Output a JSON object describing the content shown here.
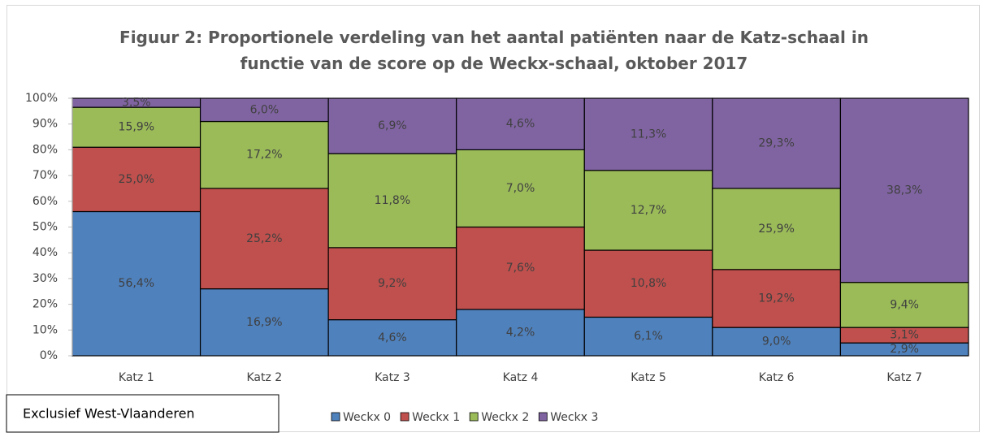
{
  "chart_data": {
    "type": "stacked_bar",
    "title": "Figuur 2: Proportionele verdeling van het aantal patiënten naar de Katz-schaal in functie van de score op de Weckx-schaal, oktober 2017",
    "note": "Exclusief West-Vlaanderen",
    "categories": [
      "Katz 1",
      "Katz 2",
      "Katz 3",
      "Katz 4",
      "Katz 5",
      "Katz 6",
      "Katz 7"
    ],
    "series": [
      {
        "name": "Weckx 0",
        "color": "#4f81bd",
        "values": [
          56,
          26,
          14,
          18,
          15,
          11,
          5
        ],
        "segment_labels": [
          "56,4%",
          "16,9%",
          "4,6%",
          "4,2%",
          "6,1%",
          "9,0%",
          "2,9%"
        ]
      },
      {
        "name": "Weckx 1",
        "color": "#c0504d",
        "values": [
          25,
          39,
          28,
          32,
          26,
          22.5,
          6
        ],
        "segment_labels": [
          "25,0%",
          "25,2%",
          "9,2%",
          "7,6%",
          "10,8%",
          "19,2%",
          "3,1%"
        ]
      },
      {
        "name": "Weckx 2",
        "color": "#9bbb59",
        "values": [
          15.5,
          26,
          36.5,
          30,
          31,
          31.5,
          17.5
        ],
        "segment_labels": [
          "15,9%",
          "17,2%",
          "11,8%",
          "7,0%",
          "12,7%",
          "25,9%",
          "9,4%"
        ]
      },
      {
        "name": "Weckx 3",
        "color": "#8064a2",
        "values": [
          3.5,
          9,
          21.5,
          20,
          28,
          35,
          71.5
        ],
        "segment_labels": [
          "3,5%",
          "6,0%",
          "6,9%",
          "4,6%",
          "11,3%",
          "29,3%",
          "38,3%"
        ]
      }
    ],
    "ylim": [
      0,
      100
    ],
    "yticks": [
      {
        "value": 0,
        "label": "0%"
      },
      {
        "value": 10,
        "label": "10%"
      },
      {
        "value": 20,
        "label": "20%"
      },
      {
        "value": 30,
        "label": "30%"
      },
      {
        "value": 40,
        "label": "40%"
      },
      {
        "value": 50,
        "label": "50%"
      },
      {
        "value": 60,
        "label": "60%"
      },
      {
        "value": 70,
        "label": "70%"
      },
      {
        "value": 80,
        "label": "80%"
      },
      {
        "value": 90,
        "label": "90%"
      },
      {
        "value": 100,
        "label": "100%"
      }
    ],
    "legend": "bottom"
  }
}
